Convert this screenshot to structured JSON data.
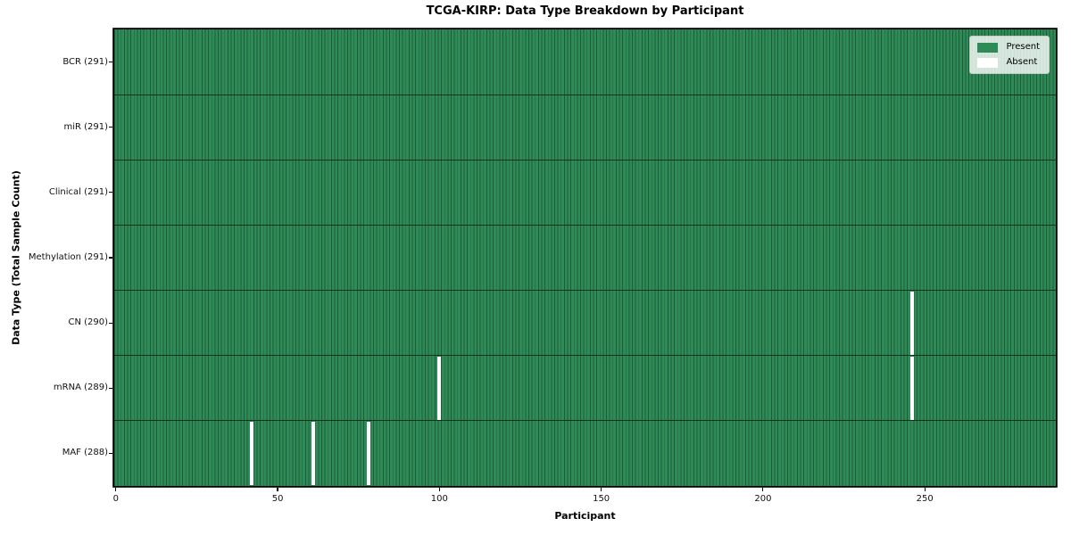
{
  "chart_data": {
    "type": "heatmap",
    "title": "TCGA-KIRP: Data Type Breakdown by Participant",
    "xlabel": "Participant",
    "ylabel": "Data Type (Total Sample Count)",
    "x_ticks": [
      0,
      50,
      100,
      150,
      200,
      250
    ],
    "x_range": [
      -0.5,
      290.5
    ],
    "n_participants": 291,
    "grid": false,
    "legend": {
      "position": "upper right",
      "entries": [
        {
          "name": "present",
          "label": "Present",
          "color": "#2e8b57"
        },
        {
          "name": "absent",
          "label": "Absent",
          "color": "#ffffff"
        }
      ]
    },
    "rows": [
      {
        "label": "BCR (291)",
        "data_type": "BCR",
        "sample_count": 291,
        "absent_participants": []
      },
      {
        "label": "miR (291)",
        "data_type": "miR",
        "sample_count": 291,
        "absent_participants": []
      },
      {
        "label": "Clinical (291)",
        "data_type": "Clinical",
        "sample_count": 291,
        "absent_participants": []
      },
      {
        "label": "Methylation (291)",
        "data_type": "Methylation",
        "sample_count": 291,
        "absent_participants": []
      },
      {
        "label": "CN (290)",
        "data_type": "CN",
        "sample_count": 290,
        "absent_participants": [
          246
        ]
      },
      {
        "label": "mRNA (289)",
        "data_type": "mRNA",
        "sample_count": 289,
        "absent_participants": [
          100,
          246
        ]
      },
      {
        "label": "MAF (288)",
        "data_type": "MAF",
        "sample_count": 288,
        "absent_participants": [
          42,
          61,
          78
        ]
      }
    ],
    "colors": {
      "present": "#2e8b57",
      "present_edge": "#1d5c3a",
      "absent": "#ffffff",
      "row_divider": "#1a1a1a",
      "spine": "#000000",
      "background": "#ffffff"
    }
  }
}
